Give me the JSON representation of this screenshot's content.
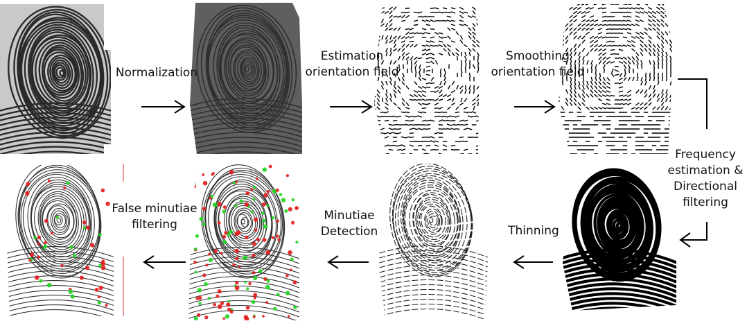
{
  "title": "",
  "steps": [
    {
      "id": "normalization",
      "lines": [
        "Normalization"
      ]
    },
    {
      "id": "estimation",
      "lines": [
        "Estimation",
        "orientation field"
      ]
    },
    {
      "id": "smoothing",
      "lines": [
        "Smoothing",
        "orientation field"
      ]
    },
    {
      "id": "frequency",
      "lines": [
        "Frequency",
        "estimation &",
        "Directional",
        "filtering"
      ]
    },
    {
      "id": "thinning",
      "lines": [
        "Thinning"
      ]
    },
    {
      "id": "minutiae",
      "lines": [
        "Minutiae",
        "Detection"
      ]
    },
    {
      "id": "false-minutiae",
      "lines": [
        "False minutiae",
        "filtering"
      ]
    }
  ],
  "images": [
    {
      "id": "raw",
      "kind": "raw fingerprint"
    },
    {
      "id": "normalized",
      "kind": "normalized fingerprint"
    },
    {
      "id": "orientation",
      "kind": "orientation field"
    },
    {
      "id": "smoothed",
      "kind": "smoothed orientation field"
    },
    {
      "id": "filtered",
      "kind": "binary filtered fingerprint"
    },
    {
      "id": "thinned",
      "kind": "thinned ridges"
    },
    {
      "id": "minutiae",
      "kind": "detected minutiae"
    },
    {
      "id": "final",
      "kind": "filtered minutiae"
    }
  ],
  "colors": {
    "arrow": "#000000",
    "minutia_end": "#e21b1b",
    "minutia_bifurcation": "#1fd41f",
    "normalized_bg": "#5f5f5f"
  }
}
